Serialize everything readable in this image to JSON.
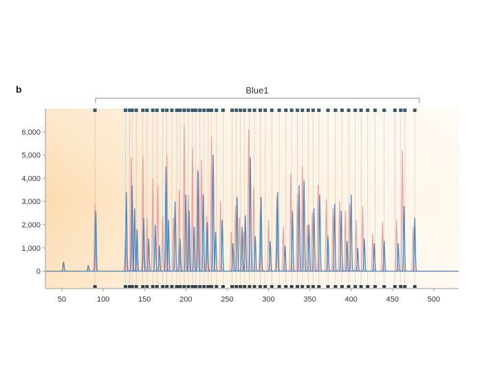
{
  "panel_label": "b",
  "bracket_label": "Blue1",
  "chart_data": {
    "type": "line",
    "title": "",
    "xlabel": "",
    "ylabel": "",
    "xlim": [
      30,
      530
    ],
    "ylim": [
      -750,
      7000
    ],
    "x_ticks": [
      50,
      100,
      150,
      200,
      250,
      300,
      350,
      400,
      450,
      500
    ],
    "x_tick_labels": [
      "50",
      "100",
      "150",
      "200",
      "250",
      "300",
      "350",
      "400",
      "450",
      "500"
    ],
    "y_ticks": [
      0,
      1000,
      2000,
      3000,
      4000,
      5000,
      6000
    ],
    "y_tick_labels": [
      "0",
      "1,000",
      "2,000",
      "3,000",
      "4,000",
      "5,000",
      "6,000"
    ],
    "bracket_range": [
      90,
      480
    ],
    "series": [
      {
        "color": "#e89a9a",
        "peaks": [
          {
            "x": 90,
            "y": 2900
          },
          {
            "x": 127,
            "y": 1700
          },
          {
            "x": 134,
            "y": 4900
          },
          {
            "x": 140,
            "y": 1100
          },
          {
            "x": 148,
            "y": 5000
          },
          {
            "x": 153,
            "y": 2300
          },
          {
            "x": 160,
            "y": 4000
          },
          {
            "x": 166,
            "y": 3700
          },
          {
            "x": 172,
            "y": 2400
          },
          {
            "x": 177,
            "y": 5000
          },
          {
            "x": 185,
            "y": 2300
          },
          {
            "x": 192,
            "y": 3500
          },
          {
            "x": 198,
            "y": 6300
          },
          {
            "x": 203,
            "y": 3300
          },
          {
            "x": 208,
            "y": 5300
          },
          {
            "x": 214,
            "y": 4400
          },
          {
            "x": 219,
            "y": 4800
          },
          {
            "x": 225,
            "y": 2400
          },
          {
            "x": 231,
            "y": 5800
          },
          {
            "x": 242,
            "y": 3000
          },
          {
            "x": 255,
            "y": 1700
          },
          {
            "x": 260,
            "y": 2800
          },
          {
            "x": 265,
            "y": 2300
          },
          {
            "x": 270,
            "y": 1700
          },
          {
            "x": 276,
            "y": 6100
          },
          {
            "x": 282,
            "y": 3600
          },
          {
            "x": 290,
            "y": 2600
          },
          {
            "x": 300,
            "y": 2200
          },
          {
            "x": 310,
            "y": 3200
          },
          {
            "x": 318,
            "y": 1900
          },
          {
            "x": 327,
            "y": 4200
          },
          {
            "x": 335,
            "y": 3300
          },
          {
            "x": 341,
            "y": 4500
          },
          {
            "x": 347,
            "y": 2000
          },
          {
            "x": 353,
            "y": 2500
          },
          {
            "x": 360,
            "y": 3700
          },
          {
            "x": 370,
            "y": 3100
          },
          {
            "x": 378,
            "y": 2700
          },
          {
            "x": 386,
            "y": 3000
          },
          {
            "x": 393,
            "y": 2600
          },
          {
            "x": 398,
            "y": 2900
          },
          {
            "x": 406,
            "y": 2200
          },
          {
            "x": 414,
            "y": 2800
          },
          {
            "x": 426,
            "y": 1600
          },
          {
            "x": 438,
            "y": 2100
          },
          {
            "x": 455,
            "y": 2200
          },
          {
            "x": 462,
            "y": 5200
          },
          {
            "x": 475,
            "y": 1900
          }
        ],
        "baseline_blips": [
          {
            "x": 52,
            "y": 400
          },
          {
            "x": 82,
            "y": 250
          }
        ]
      },
      {
        "color": "#4a86b8",
        "peaks": [
          {
            "x": 91,
            "y": 2600
          },
          {
            "x": 128,
            "y": 3400
          },
          {
            "x": 135,
            "y": 3700
          },
          {
            "x": 138,
            "y": 2700
          },
          {
            "x": 141,
            "y": 1800
          },
          {
            "x": 149,
            "y": 2300
          },
          {
            "x": 155,
            "y": 1400
          },
          {
            "x": 163,
            "y": 2000
          },
          {
            "x": 168,
            "y": 1100
          },
          {
            "x": 176,
            "y": 4500
          },
          {
            "x": 179,
            "y": 2200
          },
          {
            "x": 187,
            "y": 3000
          },
          {
            "x": 193,
            "y": 1400
          },
          {
            "x": 200,
            "y": 3300
          },
          {
            "x": 204,
            "y": 2600
          },
          {
            "x": 210,
            "y": 1900
          },
          {
            "x": 215,
            "y": 4300
          },
          {
            "x": 221,
            "y": 3300
          },
          {
            "x": 226,
            "y": 2100
          },
          {
            "x": 233,
            "y": 5000
          },
          {
            "x": 236,
            "y": 1700
          },
          {
            "x": 244,
            "y": 2200
          },
          {
            "x": 257,
            "y": 1200
          },
          {
            "x": 262,
            "y": 3200
          },
          {
            "x": 268,
            "y": 1900
          },
          {
            "x": 272,
            "y": 2400
          },
          {
            "x": 278,
            "y": 4900
          },
          {
            "x": 284,
            "y": 1500
          },
          {
            "x": 291,
            "y": 3200
          },
          {
            "x": 302,
            "y": 1300
          },
          {
            "x": 311,
            "y": 3400
          },
          {
            "x": 320,
            "y": 1100
          },
          {
            "x": 329,
            "y": 2600
          },
          {
            "x": 337,
            "y": 3700
          },
          {
            "x": 343,
            "y": 3900
          },
          {
            "x": 349,
            "y": 2000
          },
          {
            "x": 355,
            "y": 2700
          },
          {
            "x": 362,
            "y": 3300
          },
          {
            "x": 372,
            "y": 1500
          },
          {
            "x": 380,
            "y": 2900
          },
          {
            "x": 388,
            "y": 2600
          },
          {
            "x": 395,
            "y": 1300
          },
          {
            "x": 400,
            "y": 3300
          },
          {
            "x": 408,
            "y": 1000
          },
          {
            "x": 416,
            "y": 1400
          },
          {
            "x": 428,
            "y": 1200
          },
          {
            "x": 440,
            "y": 1300
          },
          {
            "x": 457,
            "y": 1200
          },
          {
            "x": 464,
            "y": 2800
          },
          {
            "x": 477,
            "y": 2300
          }
        ],
        "baseline_blips": [
          {
            "x": 52,
            "y": 400
          },
          {
            "x": 82,
            "y": 250
          }
        ]
      }
    ],
    "bin_markers": [
      90,
      127,
      132,
      135,
      140,
      148,
      153,
      160,
      165,
      172,
      177,
      183,
      189,
      193,
      198,
      203,
      208,
      212,
      217,
      222,
      227,
      231,
      237,
      245,
      256,
      261,
      266,
      271,
      277,
      283,
      290,
      296,
      304,
      313,
      321,
      328,
      335,
      341,
      348,
      354,
      361,
      372,
      381,
      389,
      397,
      405,
      412,
      420,
      429,
      440,
      453,
      460,
      465,
      477
    ]
  }
}
